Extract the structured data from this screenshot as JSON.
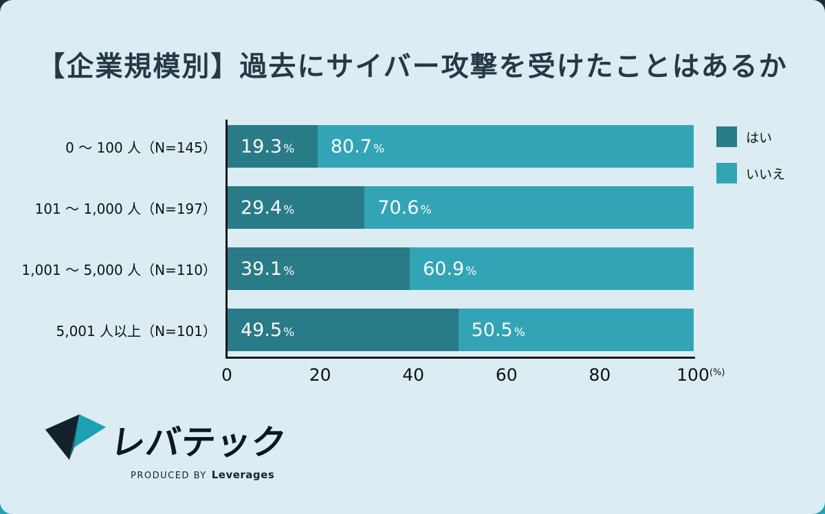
{
  "page": {
    "title": "【企業規模別】過去にサイバー攻撃を受けたことはあるか"
  },
  "chart_data": {
    "type": "bar",
    "orientation": "horizontal",
    "stacked": true,
    "title": "【企業規模別】過去にサイバー攻撃を受けたことはあるか",
    "categories": [
      "0 〜 100 人（N=145）",
      "101 〜 1,000 人（N=197）",
      "1,001 〜 5,000 人（N=110）",
      "5,001 人以上（N=101）"
    ],
    "series": [
      {
        "name": "はい",
        "color": "#2A7B88",
        "values": [
          19.3,
          29.4,
          39.1,
          49.5
        ]
      },
      {
        "name": "いいえ",
        "color": "#33A4B5",
        "values": [
          80.7,
          70.6,
          60.9,
          50.5
        ]
      }
    ],
    "x_ticks": [
      0,
      20,
      40,
      60,
      80,
      100
    ],
    "xlim": [
      0,
      100
    ],
    "x_unit": "(%)",
    "value_suffix": "%",
    "legend_position": "top-right",
    "grid": false
  },
  "footer": {
    "logo_text": "レバテック",
    "logo_produced_by": "PRODUCED BY",
    "logo_company": "Leverages"
  },
  "colors": {
    "background": "#DBECF2",
    "title": "#243B47",
    "axis": "#151515",
    "bar_yes": "#2A7B88",
    "bar_no": "#33A4B5"
  }
}
